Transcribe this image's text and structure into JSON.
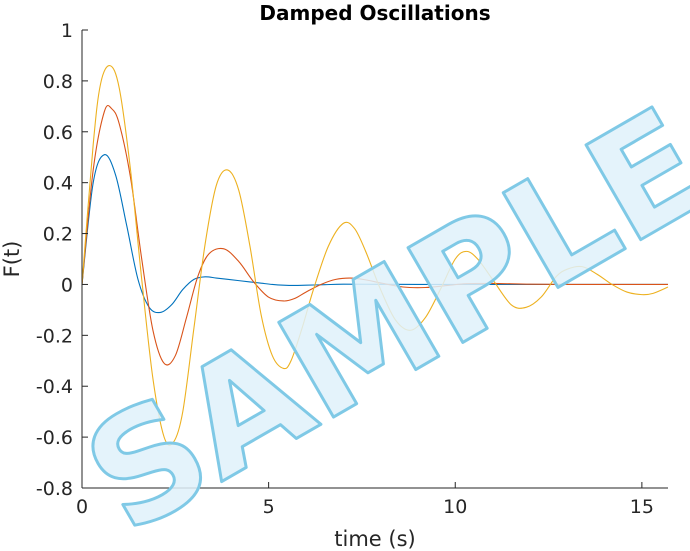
{
  "chart_data": {
    "type": "line",
    "title": "Damped Oscillations",
    "xlabel": "time (s)",
    "ylabel": "F(t)",
    "xlim": [
      0,
      15.7
    ],
    "ylim": [
      -0.8,
      1
    ],
    "xticks": [
      0,
      5,
      10,
      15
    ],
    "xtick_labels": [
      "0",
      "5",
      "10",
      "15"
    ],
    "yticks": [
      -0.8,
      -0.6,
      -0.4,
      -0.2,
      0,
      0.2,
      0.4,
      0.6,
      0.8,
      1
    ],
    "ytick_labels": [
      "-0.8",
      "-0.6",
      "-0.4",
      "-0.2",
      "0",
      "0.2",
      "0.4",
      "0.6",
      "0.8",
      "1"
    ],
    "grid": false,
    "series": [
      {
        "color": "#0072BD",
        "x": [
          0,
          0.3,
          0.6,
          0.9,
          1.2,
          1.5,
          1.8,
          2.1,
          2.4,
          2.7,
          3.0,
          3.3,
          3.6,
          3.9,
          4.2,
          4.5,
          4.8,
          5.1,
          5.4,
          5.7,
          6.0,
          6.5,
          7.0,
          8.0,
          9.0,
          10.0,
          11.0,
          12.0,
          13.0,
          14.0,
          15.0,
          15.7
        ],
        "y": [
          0,
          0.4,
          0.51,
          0.43,
          0.23,
          0.02,
          -0.09,
          -0.11,
          -0.08,
          -0.02,
          0.02,
          0.03,
          0.025,
          0.02,
          0.015,
          0.01,
          0.005,
          0.0,
          -0.003,
          -0.004,
          -0.003,
          -0.001,
          0.001,
          0.0005,
          0.0,
          0.0,
          0.0,
          0.0,
          0.0,
          0.0,
          0.0,
          0.0
        ]
      },
      {
        "color": "#D95319",
        "x": [
          0,
          0.3,
          0.6,
          0.8,
          1.0,
          1.3,
          1.6,
          1.9,
          2.2,
          2.5,
          2.8,
          3.1,
          3.4,
          3.8,
          4.2,
          4.6,
          5.0,
          5.4,
          5.7,
          6.0,
          6.4,
          6.8,
          7.2,
          7.6,
          8.0,
          8.6,
          9.2,
          9.8,
          10.3,
          11.0,
          12.0,
          13.0,
          14.0,
          15.0,
          15.7
        ],
        "y": [
          0,
          0.45,
          0.68,
          0.69,
          0.63,
          0.42,
          0.1,
          -0.18,
          -0.31,
          -0.28,
          -0.13,
          0.03,
          0.12,
          0.14,
          0.09,
          0.01,
          -0.05,
          -0.065,
          -0.055,
          -0.03,
          0.0,
          0.02,
          0.025,
          0.018,
          0.006,
          -0.01,
          -0.012,
          -0.004,
          0.003,
          0.004,
          0.001,
          0.0,
          0.0,
          0.0,
          0.0
        ]
      },
      {
        "color": "#EDB120",
        "x": [
          0,
          0.3,
          0.5,
          0.75,
          1.0,
          1.3,
          1.6,
          1.9,
          2.2,
          2.45,
          2.7,
          3.0,
          3.3,
          3.6,
          3.9,
          4.2,
          4.5,
          4.8,
          5.1,
          5.4,
          5.6,
          5.9,
          6.2,
          6.6,
          7.0,
          7.3,
          7.6,
          8.0,
          8.4,
          8.8,
          9.2,
          9.6,
          10.0,
          10.3,
          10.6,
          11.0,
          11.5,
          11.9,
          12.3,
          12.7,
          13.0,
          13.4,
          13.8,
          14.2,
          14.6,
          15.0,
          15.3,
          15.7
        ],
        "y": [
          0,
          0.55,
          0.79,
          0.86,
          0.77,
          0.45,
          0.02,
          -0.37,
          -0.6,
          -0.62,
          -0.5,
          -0.17,
          0.16,
          0.39,
          0.45,
          0.37,
          0.15,
          -0.12,
          -0.28,
          -0.33,
          -0.3,
          -0.17,
          -0.02,
          0.15,
          0.24,
          0.22,
          0.13,
          -0.02,
          -0.14,
          -0.18,
          -0.13,
          -0.02,
          0.1,
          0.13,
          0.1,
          0.02,
          -0.08,
          -0.09,
          -0.05,
          0.03,
          0.06,
          0.07,
          0.04,
          0.0,
          -0.03,
          -0.04,
          -0.035,
          -0.01
        ]
      }
    ],
    "watermark": "SAMPLE"
  }
}
